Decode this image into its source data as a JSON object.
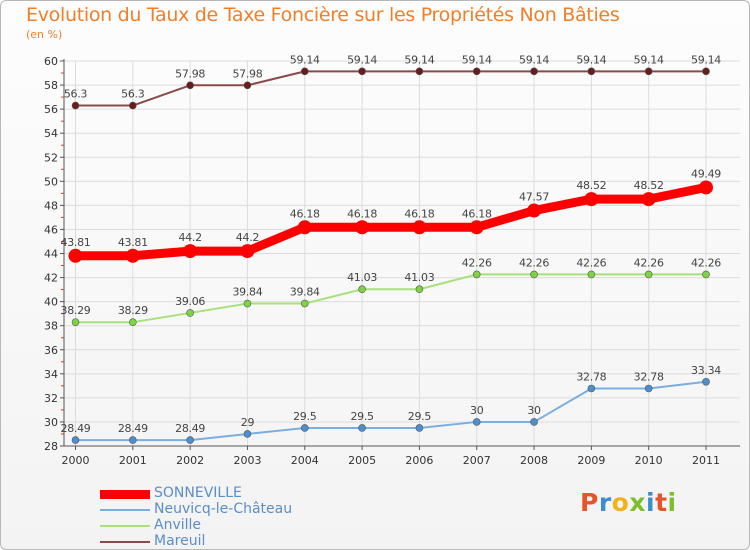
{
  "title": "Evolution du Taux de Taxe Foncière sur les Propriétés Non Bâties",
  "unit": "(en %)",
  "logo": {
    "text": "Proxiti",
    "colors": [
      "#e8542a",
      "#3b8fd1",
      "#f3b21a",
      "#7cbf2a",
      "#3b8fd1",
      "#e8542a",
      "#7cbf2a"
    ]
  },
  "chart_data": {
    "type": "line",
    "title": "Evolution du Taux de Taxe Foncière sur les Propriétés Non Bâties",
    "ylabel": "(en %)",
    "xlabel": "",
    "ylim": [
      28,
      60
    ],
    "yticks": [
      28,
      30,
      32,
      34,
      36,
      38,
      40,
      42,
      44,
      46,
      48,
      50,
      52,
      54,
      56,
      58,
      60
    ],
    "categories": [
      "2000",
      "2001",
      "2002",
      "2003",
      "2004",
      "2005",
      "2006",
      "2007",
      "2008",
      "2009",
      "2010",
      "2011"
    ],
    "series": [
      {
        "name": "SONNEVILLE",
        "color": "#ff0000",
        "point_color": "#ff0000",
        "emphasis": true,
        "values": [
          43.81,
          43.81,
          44.2,
          44.2,
          46.18,
          46.18,
          46.18,
          46.18,
          47.57,
          48.52,
          48.52,
          49.49
        ],
        "labels": [
          "43.81",
          "43.81",
          "44.2",
          "44.2",
          "46.18",
          "46.18",
          "46.18",
          "46.18",
          "47.57",
          "48.52",
          "48.52",
          "49.49"
        ]
      },
      {
        "name": "Neuvicq-le-Château",
        "color": "#7aaee0",
        "point_color": "#4a8fd0",
        "emphasis": false,
        "values": [
          28.49,
          28.49,
          28.49,
          29,
          29.5,
          29.5,
          29.5,
          30,
          30,
          32.78,
          32.78,
          33.34
        ],
        "labels": [
          "28.49",
          "28.49",
          "28.49",
          "29",
          "29.5",
          "29.5",
          "29.5",
          "30",
          "30",
          "32.78",
          "32.78",
          "33.34"
        ]
      },
      {
        "name": "Anville",
        "color": "#a8e07a",
        "point_color": "#7cd442",
        "emphasis": false,
        "values": [
          38.29,
          38.29,
          39.06,
          39.84,
          39.84,
          41.03,
          41.03,
          42.26,
          42.26,
          42.26,
          42.26,
          42.26
        ],
        "labels": [
          "38.29",
          "38.29",
          "39.06",
          "39.84",
          "39.84",
          "41.03",
          "41.03",
          "42.26",
          "42.26",
          "42.26",
          "42.26",
          "42.26"
        ]
      },
      {
        "name": "Mareuil",
        "color": "#8b4a4a",
        "point_color": "#6a1b1b",
        "emphasis": false,
        "values": [
          56.3,
          56.3,
          57.98,
          57.98,
          59.14,
          59.14,
          59.14,
          59.14,
          59.14,
          59.14,
          59.14,
          59.14
        ],
        "labels": [
          "56.3",
          "56.3",
          "57.98",
          "57.98",
          "59.14",
          "59.14",
          "59.14",
          "59.14",
          "59.14",
          "59.14",
          "59.14",
          "59.14"
        ]
      }
    ]
  }
}
